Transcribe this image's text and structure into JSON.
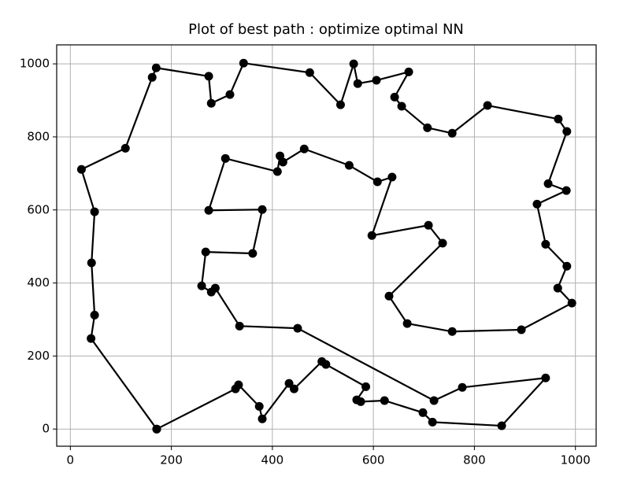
{
  "chart_data": {
    "type": "line",
    "title": "Plot of best path : optimize optimal NN",
    "x": [
      171,
      41,
      48,
      42,
      48,
      22,
      109,
      162,
      170,
      274,
      279,
      316,
      343,
      474,
      535,
      561,
      569,
      606,
      670,
      642,
      656,
      707,
      756,
      826,
      966,
      983,
      946,
      982,
      924,
      941,
      983,
      965,
      993,
      893,
      756,
      667,
      631,
      737,
      709,
      597,
      637,
      608,
      552,
      463,
      421,
      415,
      410,
      307,
      274,
      380,
      361,
      268,
      260,
      279,
      287,
      335,
      450,
      720,
      776,
      941,
      854,
      717,
      698,
      622,
      575,
      567,
      585,
      506,
      498,
      443,
      433,
      380,
      374,
      333,
      327,
      171
    ],
    "series": [
      {
        "color": "#000000",
        "values": [
          0,
          248,
          312,
          455,
          595,
          711,
          769,
          963,
          989,
          966,
          892,
          916,
          1002,
          976,
          888,
          1000,
          946,
          955,
          978,
          909,
          884,
          825,
          810,
          886,
          849,
          815,
          672,
          653,
          616,
          506,
          446,
          386,
          345,
          272,
          267,
          289,
          364,
          509,
          558,
          530,
          690,
          677,
          722,
          767,
          731,
          748,
          705,
          741,
          599,
          601,
          481,
          485,
          392,
          375,
          386,
          282,
          276,
          78,
          114,
          140,
          9,
          19,
          45,
          78,
          75,
          80,
          116,
          177,
          185,
          110,
          125,
          28,
          62,
          121,
          110,
          0
        ]
      }
    ],
    "xlim": [
      -27,
      1041
    ],
    "ylim": [
      -47,
      1052
    ],
    "xticks": [
      0,
      200,
      400,
      600,
      800,
      1000
    ],
    "yticks": [
      0,
      200,
      400,
      600,
      800,
      1000
    ],
    "grid": true
  }
}
